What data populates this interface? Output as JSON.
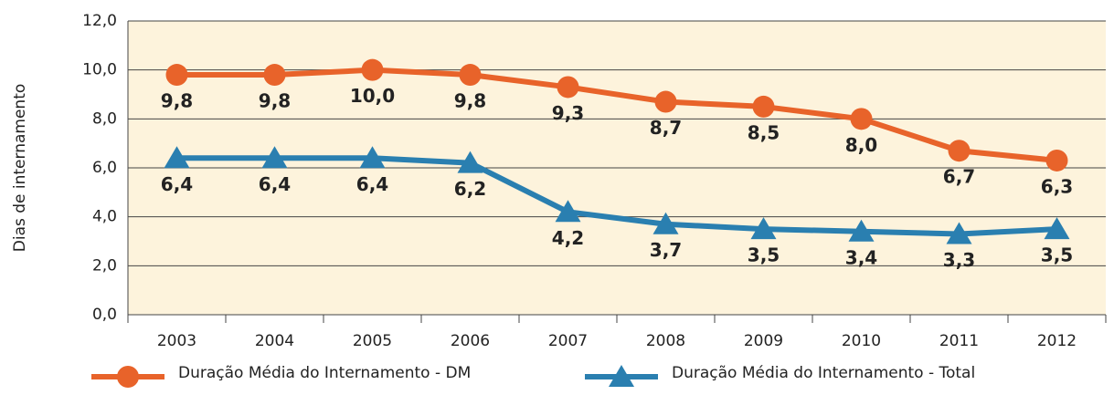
{
  "chart_data": {
    "type": "line",
    "y_label": "Dias de internamento",
    "categories": [
      "2003",
      "2004",
      "2005",
      "2006",
      "2007",
      "2008",
      "2009",
      "2010",
      "2011",
      "2012"
    ],
    "series": [
      {
        "name": "Duração Média do Internamento - DM",
        "color": "#e8632a",
        "marker": "circle",
        "values": [
          9.8,
          9.8,
          10.0,
          9.8,
          9.3,
          8.7,
          8.5,
          8.0,
          6.7,
          6.3
        ],
        "value_labels": [
          "9,8",
          "9,8",
          "10,0",
          "9,8",
          "9,3",
          "8,7",
          "8,5",
          "8,0",
          "6,7",
          "6,3"
        ]
      },
      {
        "name": "Duração Média do Internamento - Total",
        "color": "#2a7fb0",
        "marker": "triangle",
        "values": [
          6.4,
          6.4,
          6.4,
          6.2,
          4.2,
          3.7,
          3.5,
          3.4,
          3.3,
          3.5
        ],
        "value_labels": [
          "6,4",
          "6,4",
          "6,4",
          "6,2",
          "4,2",
          "3,7",
          "3,5",
          "3,4",
          "3,3",
          "3,5"
        ]
      }
    ],
    "ylim": [
      0,
      12
    ],
    "yticks": [
      {
        "value": 0,
        "label": "0,0"
      },
      {
        "value": 2,
        "label": "2,0"
      },
      {
        "value": 4,
        "label": "4,0"
      },
      {
        "value": 6,
        "label": "6,0"
      },
      {
        "value": 8,
        "label": "8,0"
      },
      {
        "value": 10,
        "label": "10,0"
      },
      {
        "value": 12,
        "label": "12,0"
      }
    ],
    "grid": true
  }
}
